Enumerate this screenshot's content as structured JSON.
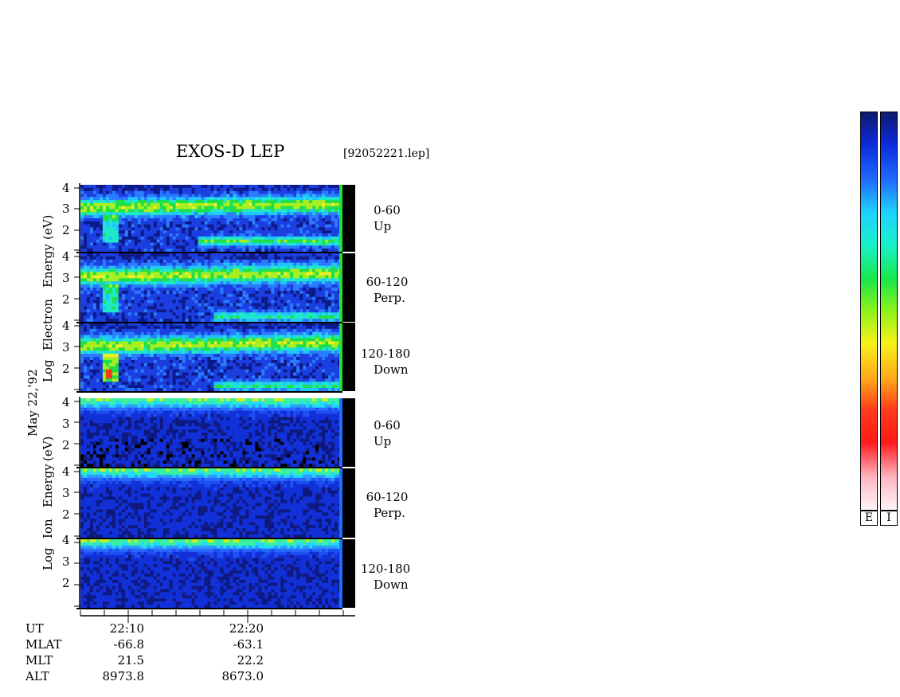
{
  "chart_data": {
    "type": "heatmap",
    "title": "EXOS-D LEP",
    "file": "[92052221.lep]",
    "date_label": "May 22,'92",
    "electron_ylabel": [
      "Log",
      "Electron",
      "Energy",
      "(eV)"
    ],
    "ion_ylabel": [
      "Log",
      "Ion",
      "Energy",
      "(eV)"
    ],
    "ytick_labels": [
      "4",
      "3",
      "2"
    ],
    "electron_panels": [
      {
        "range": "0-60",
        "dir": "Up"
      },
      {
        "range": "60-120",
        "dir": "Perp."
      },
      {
        "range": "120-180",
        "dir": "Down"
      }
    ],
    "ion_panels": [
      {
        "range": "0-60",
        "dir": "Up"
      },
      {
        "range": "60-120",
        "dir": "Perp."
      },
      {
        "range": "120-180",
        "dir": "Down"
      }
    ],
    "orbit_rows": [
      "UT",
      "MLAT",
      "MLT",
      "ALT"
    ],
    "orbit_columns": [
      {
        "UT": "22:10",
        "MLAT": "-66.8",
        "MLT": "21.5",
        "ALT": "8973.8"
      },
      {
        "UT": "22:20",
        "MLAT": "-63.1",
        "MLT": "22.2",
        "ALT": "8673.0"
      }
    ],
    "colorbar_keys": [
      "E",
      "I"
    ],
    "colorscale": [
      "#101a6e",
      "#0a2bd8",
      "#1f6cff",
      "#1fd0ff",
      "#19f0d0",
      "#19e84a",
      "#8ef21a",
      "#f7f21a",
      "#ffa91a",
      "#ff3a1a",
      "#ff1a1a",
      "#ffb8c4",
      "#fff4f8"
    ]
  }
}
